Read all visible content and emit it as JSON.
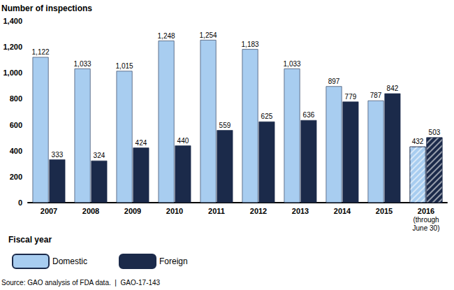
{
  "chart_data": {
    "type": "bar",
    "y_label": "Number of inspections",
    "x_label": "Fiscal year",
    "note": "Source: GAO analysis of FDA data.  |  GAO-17-143",
    "categories": [
      "2007",
      "2008",
      "2009",
      "2010",
      "2011",
      "2012",
      "2013",
      "2014",
      "2015",
      "2016\n(through\nJune 30)"
    ],
    "series": [
      {
        "name": "Domestic",
        "color": "#a8cdf0",
        "values": [
          1122,
          1033,
          1015,
          1248,
          1254,
          1183,
          1033,
          897,
          787,
          432
        ],
        "value_labels": [
          "1,122",
          "1,033",
          "1,015",
          "1,248",
          "1,254",
          "1,183",
          "1,033",
          "897",
          "787",
          "432"
        ]
      },
      {
        "name": "Foreign",
        "color": "#1b2a4a",
        "values": [
          333,
          324,
          424,
          440,
          559,
          625,
          636,
          779,
          842,
          503
        ]
      }
    ],
    "ylim": [
      0,
      1400
    ],
    "yticks": [
      0,
      200,
      400,
      600,
      800,
      {
        "value": 1000,
        "label": "1,000"
      },
      {
        "value": 1200,
        "label": "1,200"
      },
      {
        "value": 1400,
        "label": "1,400"
      }
    ],
    "grid": false,
    "legend": "bottom",
    "data_labels": true
  }
}
